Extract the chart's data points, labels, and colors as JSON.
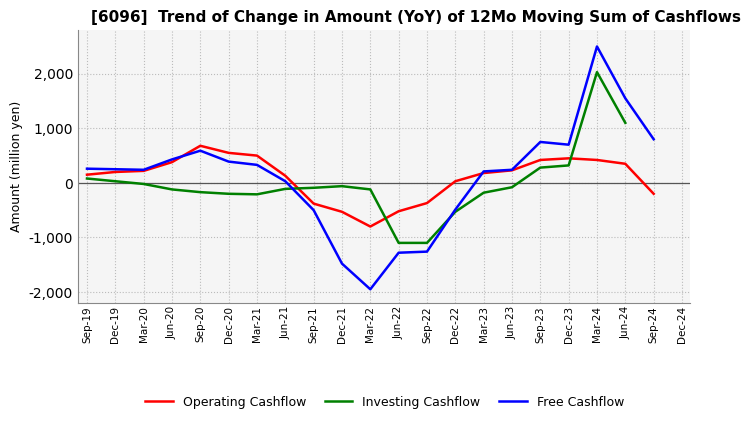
{
  "title": "[6096]  Trend of Change in Amount (YoY) of 12Mo Moving Sum of Cashflows",
  "ylabel": "Amount (million yen)",
  "x_labels": [
    "Sep-19",
    "Dec-19",
    "Mar-20",
    "Jun-20",
    "Sep-20",
    "Dec-20",
    "Mar-21",
    "Jun-21",
    "Sep-21",
    "Dec-21",
    "Mar-22",
    "Jun-22",
    "Sep-22",
    "Dec-22",
    "Mar-23",
    "Jun-23",
    "Sep-23",
    "Dec-23",
    "Mar-24",
    "Jun-24",
    "Sep-24",
    "Dec-24"
  ],
  "operating": [
    150,
    200,
    220,
    380,
    680,
    550,
    500,
    130,
    -380,
    -530,
    -800,
    -520,
    -370,
    30,
    180,
    230,
    420,
    450,
    420,
    350,
    -200,
    null
  ],
  "investing": [
    80,
    30,
    -20,
    -120,
    -170,
    -200,
    -210,
    -110,
    -90,
    -60,
    -120,
    -1100,
    -1100,
    -530,
    -180,
    -80,
    280,
    320,
    2030,
    1100,
    null,
    null
  ],
  "free": [
    260,
    250,
    240,
    430,
    590,
    390,
    330,
    30,
    -500,
    -1480,
    -1950,
    -1280,
    -1260,
    -490,
    210,
    240,
    750,
    700,
    2500,
    1550,
    800,
    null
  ],
  "operating_color": "#ff0000",
  "investing_color": "#008000",
  "free_color": "#0000ff",
  "ylim": [
    -2200,
    2800
  ],
  "yticks": [
    -2000,
    -1000,
    0,
    1000,
    2000
  ],
  "bg_color": "#ffffff",
  "plot_bg_color": "#f5f5f5",
  "grid_color": "#bbbbbb"
}
